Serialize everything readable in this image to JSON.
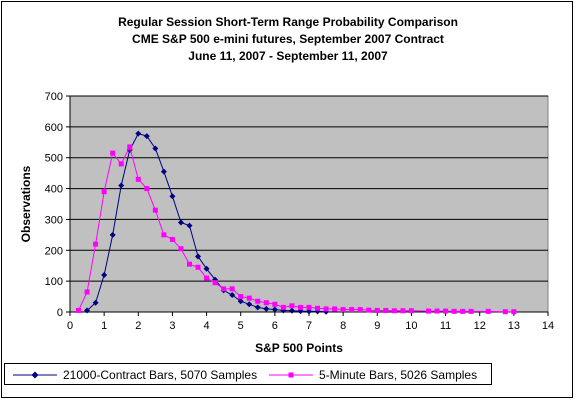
{
  "chart_data": {
    "type": "line",
    "title": "Regular Session Short-Term Range Probability Comparison",
    "subtitle1": "CME S&P 500 e-mini futures, September 2007 Contract",
    "subtitle2": "June 11, 2007 - September 11, 2007",
    "xlabel": "S&P 500 Points",
    "ylabel": "Observations",
    "xlim": [
      0,
      14
    ],
    "ylim": [
      0,
      700
    ],
    "xticks": [
      0,
      1,
      2,
      3,
      4,
      5,
      6,
      7,
      8,
      9,
      10,
      11,
      12,
      13,
      14
    ],
    "yticks": [
      0,
      100,
      200,
      300,
      400,
      500,
      600,
      700
    ],
    "grid": true,
    "legend_position": "bottom",
    "plot_background": "#c0c0c0",
    "series": [
      {
        "name": "21000-Contract Bars, 5070 Samples",
        "color": "#000080",
        "marker": "diamond",
        "x": [
          0.5,
          0.75,
          1.0,
          1.25,
          1.5,
          1.75,
          2.0,
          2.25,
          2.5,
          2.75,
          3.0,
          3.25,
          3.5,
          3.75,
          4.0,
          4.25,
          4.5,
          4.75,
          5.0,
          5.25,
          5.5,
          5.75,
          6.0,
          6.25,
          6.5,
          6.75,
          7.0,
          7.25,
          7.5
        ],
        "y": [
          5,
          30,
          120,
          250,
          410,
          525,
          578,
          570,
          530,
          455,
          375,
          290,
          280,
          180,
          140,
          105,
          70,
          55,
          35,
          25,
          15,
          10,
          8,
          5,
          4,
          3,
          2,
          2,
          1
        ]
      },
      {
        "name": "5-Minute Bars, 5026 Samples",
        "color": "#ff00ff",
        "marker": "square",
        "x": [
          0.25,
          0.5,
          0.75,
          1.0,
          1.25,
          1.5,
          1.75,
          2.0,
          2.25,
          2.5,
          2.75,
          3.0,
          3.25,
          3.5,
          3.75,
          4.0,
          4.25,
          4.5,
          4.75,
          5.0,
          5.25,
          5.5,
          5.75,
          6.0,
          6.25,
          6.5,
          6.75,
          7.0,
          7.25,
          7.5,
          7.75,
          8.0,
          8.25,
          8.5,
          8.75,
          9.0,
          9.25,
          9.5,
          9.75,
          10.0,
          10.5,
          10.75,
          11.0,
          11.25,
          11.5,
          11.75,
          12.25,
          12.75,
          13.0
        ],
        "y": [
          5,
          65,
          220,
          390,
          515,
          480,
          535,
          430,
          400,
          330,
          250,
          235,
          205,
          155,
          145,
          110,
          95,
          75,
          75,
          50,
          45,
          35,
          30,
          25,
          15,
          20,
          15,
          15,
          12,
          10,
          10,
          8,
          8,
          8,
          6,
          5,
          5,
          4,
          4,
          4,
          3,
          3,
          3,
          2,
          2,
          2,
          2,
          1,
          1
        ]
      }
    ]
  }
}
